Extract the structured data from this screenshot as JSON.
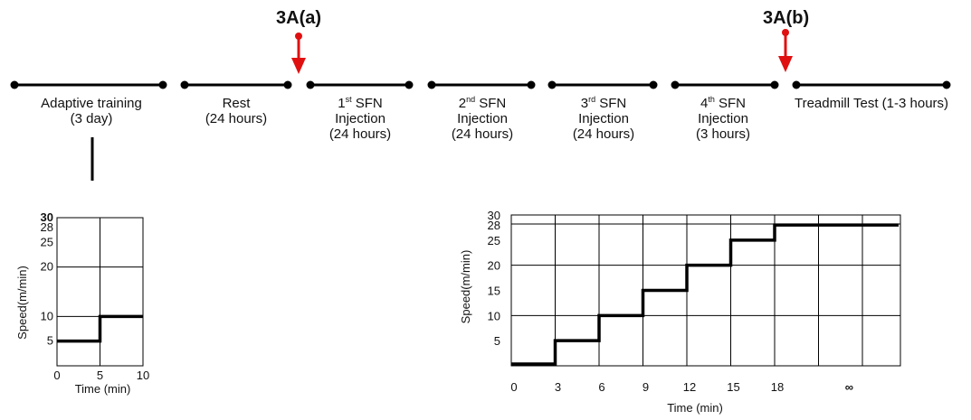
{
  "markers": {
    "a": "3A(a)",
    "b": "3A(b)"
  },
  "timeline": [
    {
      "l1": "Adaptive training",
      "l2": "(3 day)"
    },
    {
      "l1": "Rest",
      "l2": "(24 hours)"
    },
    {
      "pre": "1",
      "sup": "st",
      "post": " SFN",
      "l2": "Injection",
      "l3": "(24 hours)"
    },
    {
      "pre": "2",
      "sup": "nd",
      "post": " SFN",
      "l2": "Injection",
      "l3": "(24 hours)"
    },
    {
      "pre": "3",
      "sup": "rd",
      "post": " SFN",
      "l2": "Injection",
      "l3": "(24 hours)"
    },
    {
      "pre": "4",
      "sup": "th",
      "post": " SFN",
      "l2": "Injection",
      "l3": "(3 hours)"
    },
    {
      "l1": "Treadmill Test (1-3 hours)"
    }
  ],
  "colors": {
    "marker_arrow": "#e01010",
    "line": "#000000"
  },
  "chart_data": [
    {
      "type": "line",
      "xlabel": "Time (min)",
      "ylabel": "Speed(m/min)",
      "x_ticks": [
        "0",
        "5",
        "10"
      ],
      "y_ticks": [
        "5",
        "10",
        "20",
        "25",
        "28",
        "30"
      ],
      "xlim": [
        0,
        10
      ],
      "ylim": [
        0,
        30
      ],
      "grid": true,
      "series": [
        {
          "x": [
            0,
            5,
            5,
            10
          ],
          "y": [
            5,
            5,
            10,
            10
          ]
        }
      ]
    },
    {
      "type": "line",
      "xlabel": "Time (min)",
      "ylabel": "Speed(m/min)",
      "x_ticks": [
        "0",
        "3",
        "6",
        "9",
        "12",
        "15",
        "18",
        "∞"
      ],
      "y_ticks": [
        "5",
        "10",
        "15",
        "20",
        "25",
        "28",
        "30"
      ],
      "ylim": [
        0,
        30
      ],
      "grid": true,
      "series": [
        {
          "x": [
            0,
            3,
            3,
            6,
            6,
            9,
            9,
            12,
            12,
            15,
            15,
            18,
            18,
            25
          ],
          "y": [
            0,
            0,
            5,
            5,
            10,
            10,
            15,
            15,
            20,
            20,
            25,
            25,
            28,
            28
          ]
        }
      ]
    }
  ]
}
